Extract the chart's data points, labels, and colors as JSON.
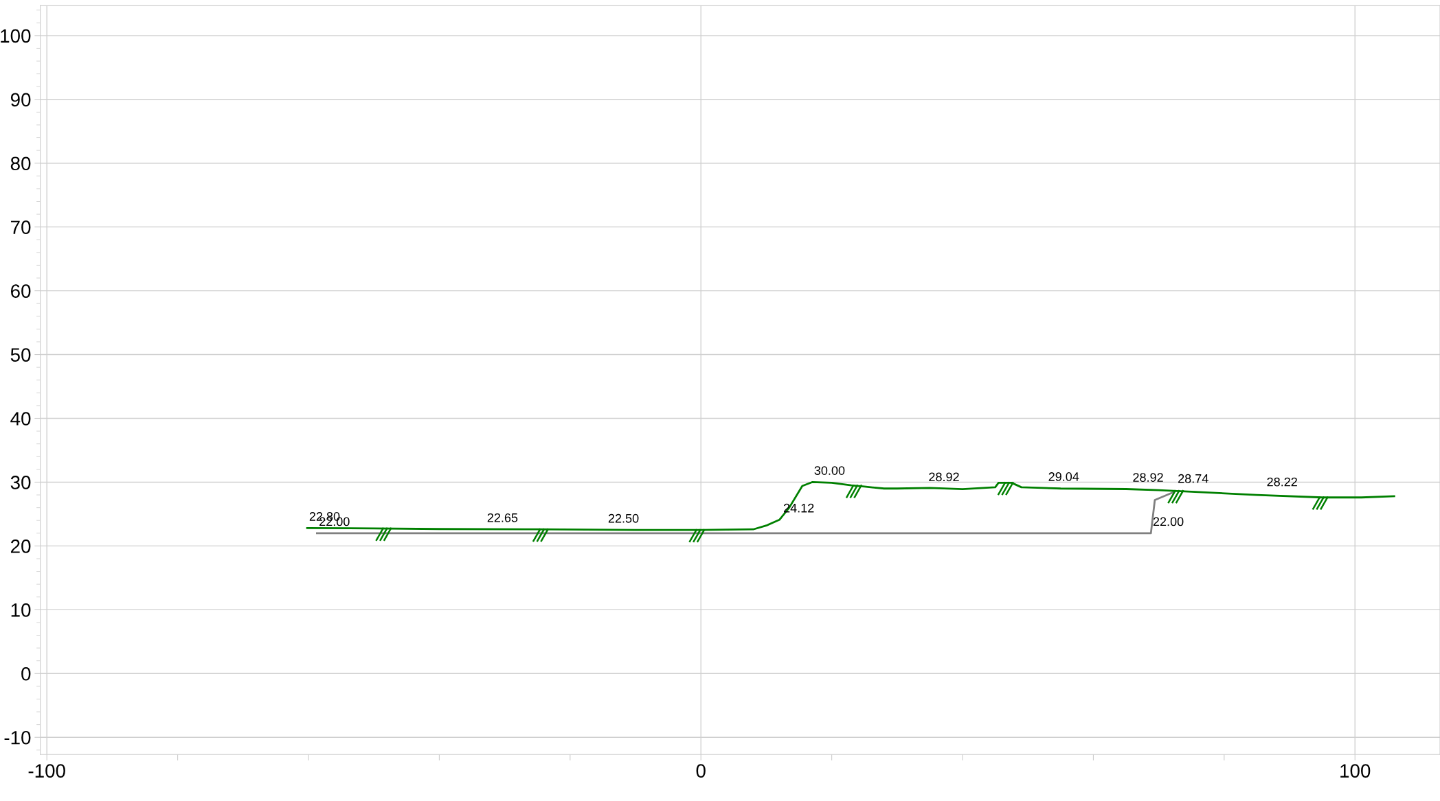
{
  "chart_data": {
    "type": "line",
    "xlim": [
      -101,
      113
    ],
    "ylim": [
      -12.7,
      104.7
    ],
    "xticks": [
      -100,
      {
        "value": -80,
        "label": null
      },
      {
        "value": -60,
        "label": null
      },
      {
        "value": -40,
        "label": null
      },
      {
        "value": -20,
        "label": null
      },
      0,
      {
        "value": 20,
        "label": null
      },
      {
        "value": 40,
        "label": null
      },
      {
        "value": 60,
        "label": null
      },
      {
        "value": 80,
        "label": null
      },
      100
    ],
    "yticks": [
      -10,
      0,
      10,
      20,
      30,
      40,
      50,
      60,
      70,
      80,
      90,
      100
    ],
    "grid": true,
    "legend": false,
    "marker": "none",
    "line_style": "solid",
    "series": [
      {
        "color": "#808080",
        "x": [
          -58.7,
          68.8,
          69.4,
          72.2
        ],
        "values": [
          22.0,
          22.0,
          27.2,
          28.4
        ]
      },
      {
        "color": "#008000",
        "x": [
          -60.2,
          -50,
          -40,
          -25,
          -10,
          0,
          8,
          10,
          12,
          13.5,
          15.5,
          17,
          20,
          23,
          25,
          28,
          30,
          35,
          40,
          45,
          45.5,
          47.5,
          49,
          55,
          65,
          70,
          75,
          85,
          95,
          101,
          106
        ],
        "values": [
          22.8,
          22.75,
          22.65,
          22.6,
          22.5,
          22.5,
          22.6,
          23.2,
          24.1,
          26.0,
          29.4,
          30.0,
          29.9,
          29.5,
          29.3,
          29.0,
          29.0,
          29.1,
          28.9,
          29.2,
          29.9,
          29.9,
          29.2,
          29.0,
          28.92,
          28.74,
          28.5,
          28.0,
          27.6,
          27.6,
          27.8
        ]
      }
    ],
    "annotations": [
      {
        "text": "22.80",
        "x": -60.2,
        "y": 22.8
      },
      {
        "text": "22.00",
        "x": -58.7,
        "y": 22.0
      },
      {
        "text": "22.65",
        "x": -33,
        "y": 22.6
      },
      {
        "text": "22.50",
        "x": -14.5,
        "y": 22.5
      },
      {
        "text": "24.12",
        "x": 12.3,
        "y": 24.12
      },
      {
        "text": "30.00",
        "x": 17,
        "y": 30.0
      },
      {
        "text": "28.92",
        "x": 34.5,
        "y": 29.0
      },
      {
        "text": "29.04",
        "x": 52.8,
        "y": 29.04
      },
      {
        "text": "28.92",
        "x": 65.7,
        "y": 28.92
      },
      {
        "text": "28.74",
        "x": 72.6,
        "y": 28.74
      },
      {
        "text": "28.22",
        "x": 86.2,
        "y": 28.22
      },
      {
        "text": "22.00",
        "x": 68.8,
        "y": 22.0
      }
    ]
  }
}
